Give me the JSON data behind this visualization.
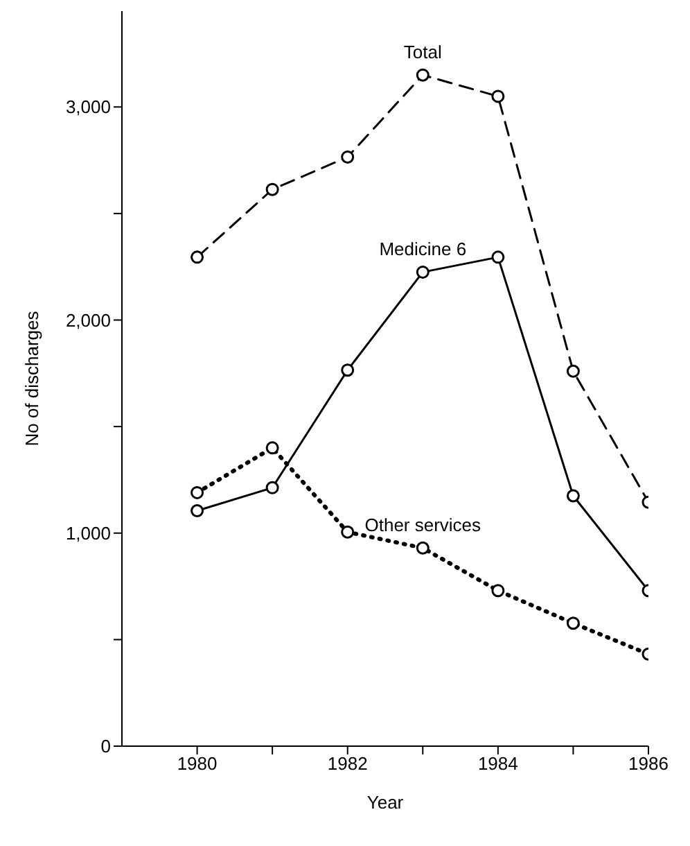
{
  "chart_data": {
    "type": "line",
    "xlabel": "Year",
    "ylabel": "No of discharges",
    "x": [
      1980,
      1981,
      1982,
      1983,
      1984,
      1985,
      1986
    ],
    "series": [
      {
        "name": "Total",
        "color": "#000000",
        "line_style": "dashed",
        "values": [
          2295,
          2613,
          2765,
          3150,
          3050,
          1760,
          1145
        ]
      },
      {
        "name": "Medicine 6",
        "color": "#000000",
        "line_style": "solid",
        "values": [
          1105,
          1213,
          1765,
          2225,
          2295,
          1175,
          730
        ]
      },
      {
        "name": "Other services",
        "color": "#000000",
        "line_style": "dotted",
        "values": [
          1190,
          1400,
          1005,
          930,
          730,
          577,
          432
        ]
      }
    ],
    "xlim": [
      1979,
      1986
    ],
    "xticks": [
      1980,
      {
        "value": 1981,
        "label": null
      },
      1982,
      {
        "value": 1983,
        "label": null
      },
      1984,
      {
        "value": 1985,
        "label": null
      },
      1986
    ],
    "ylim": [
      0,
      3450
    ],
    "yticks": [
      {
        "value": 0,
        "label": "0"
      },
      {
        "value": 500,
        "label": null
      },
      {
        "value": 1000,
        "label": "1,000"
      },
      {
        "value": 1500,
        "label": null
      },
      {
        "value": 2000,
        "label": "2,000"
      },
      {
        "value": 2500,
        "label": null
      },
      {
        "value": 3000,
        "label": "3,000"
      }
    ],
    "grid": false,
    "legend": false,
    "marker": "circle"
  }
}
